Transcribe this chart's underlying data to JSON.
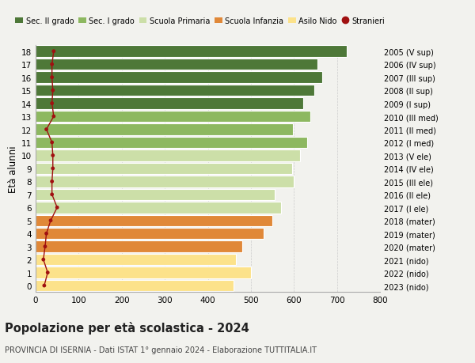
{
  "ages": [
    0,
    1,
    2,
    3,
    4,
    5,
    6,
    7,
    8,
    9,
    10,
    11,
    12,
    13,
    14,
    15,
    16,
    17,
    18
  ],
  "right_labels": [
    "2023 (nido)",
    "2022 (nido)",
    "2021 (nido)",
    "2020 (mater)",
    "2019 (mater)",
    "2018 (mater)",
    "2017 (I ele)",
    "2016 (II ele)",
    "2015 (III ele)",
    "2014 (IV ele)",
    "2013 (V ele)",
    "2012 (I med)",
    "2011 (II med)",
    "2010 (III med)",
    "2009 (I sup)",
    "2008 (II sup)",
    "2007 (III sup)",
    "2006 (IV sup)",
    "2005 (V sup)"
  ],
  "bar_values": [
    460,
    500,
    465,
    480,
    530,
    550,
    570,
    555,
    600,
    595,
    615,
    630,
    597,
    638,
    622,
    648,
    665,
    655,
    722
  ],
  "bar_colors": [
    "#fce28a",
    "#fce28a",
    "#fce28a",
    "#e08838",
    "#e08838",
    "#e08838",
    "#ccdfa8",
    "#ccdfa8",
    "#ccdfa8",
    "#ccdfa8",
    "#ccdfa8",
    "#8db860",
    "#8db860",
    "#8db860",
    "#4e7838",
    "#4e7838",
    "#4e7838",
    "#4e7838",
    "#4e7838"
  ],
  "stranieri_values": [
    20,
    28,
    18,
    22,
    25,
    35,
    50,
    38,
    38,
    40,
    40,
    38,
    25,
    42,
    38,
    40,
    38,
    38,
    42
  ],
  "legend_labels": [
    "Sec. II grado",
    "Sec. I grado",
    "Scuola Primaria",
    "Scuola Infanzia",
    "Asilo Nido",
    "Stranieri"
  ],
  "legend_colors": [
    "#4e7838",
    "#8db860",
    "#ccdfa8",
    "#e08838",
    "#fce28a",
    "#a01010"
  ],
  "title": "Popolazione per età scolastica - 2024",
  "subtitle": "PROVINCIA DI ISERNIA - Dati ISTAT 1° gennaio 2024 - Elaborazione TUTTITALIA.IT",
  "ylabel_left": "Età alunni",
  "xlim": [
    0,
    800
  ],
  "xticks": [
    0,
    100,
    200,
    300,
    400,
    500,
    600,
    700,
    800
  ],
  "bg_color": "#f2f2ee",
  "white_line_color": "#ffffff"
}
